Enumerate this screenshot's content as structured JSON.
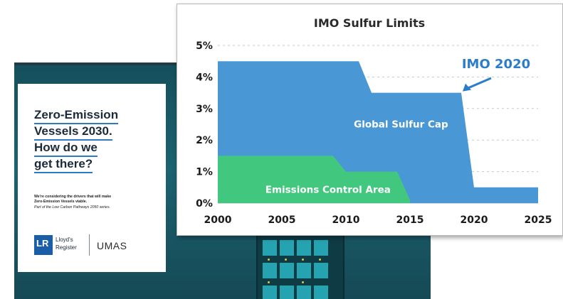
{
  "brochure": {
    "title_lines": [
      "Zero-Emission",
      "Vessels 2030.",
      "How do we",
      "get there?"
    ],
    "subtitle_1": "We're considering the drivers that will make",
    "subtitle_2": "Zero-Emission Vessels viable.",
    "subtitle_3": "Part of the Low Carbon Pathways 2050 series.",
    "lr_mark": "LR",
    "lr_word_1": "Lloyd's",
    "lr_word_2": "Register",
    "partner_logo": "UMAS"
  },
  "chart_data": {
    "type": "area",
    "title": "IMO Sulfur Limits",
    "xlim": [
      2000,
      2025
    ],
    "ylim": [
      0,
      5
    ],
    "x_ticks": [
      2000,
      2005,
      2010,
      2015,
      2020,
      2025
    ],
    "y_ticks": [
      0,
      1,
      2,
      3,
      4,
      5
    ],
    "y_tick_labels": [
      "0%",
      "1%",
      "2%",
      "3%",
      "4%",
      "5%"
    ],
    "grid": true,
    "series": [
      {
        "name": "Global Sulfur Cap",
        "color": "#4a97d6",
        "x": [
          2000,
          2011,
          2012,
          2019,
          2020,
          2025
        ],
        "y": [
          4.5,
          4.5,
          3.5,
          3.5,
          0.5,
          0.5
        ]
      },
      {
        "name": "Emissions Control Area",
        "color": "#41c77e",
        "x": [
          2000,
          2009,
          2010,
          2014,
          2015
        ],
        "y": [
          1.5,
          1.5,
          1.0,
          1.0,
          0.1
        ]
      }
    ],
    "annotations": [
      {
        "text": "IMO 2020",
        "x": 2020,
        "y": 3.5,
        "color": "#2b7cc9"
      }
    ]
  }
}
